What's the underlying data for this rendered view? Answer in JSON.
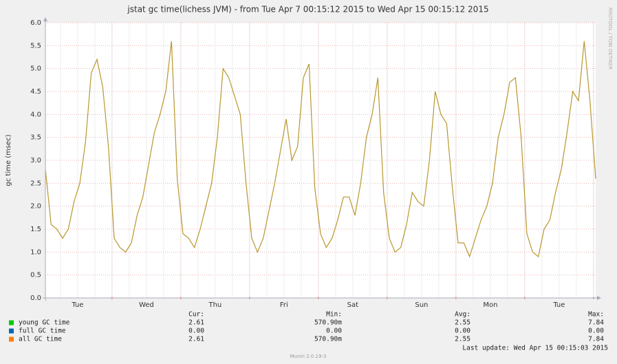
{
  "chart_data": {
    "type": "line",
    "title": "jstat gc time(lichess JVM) - from Tue Apr  7 00:15:12 2015 to Wed Apr 15 00:15:12 2015",
    "y_label": "gc time (msec)",
    "side_label": "RRDTOOL / TOBI OETIKER",
    "categories": [
      "Tue",
      "Wed",
      "Thu",
      "Fri",
      "Sat",
      "Sun",
      "Mon",
      "Tue"
    ],
    "ylim": [
      0,
      6
    ],
    "yticks": [
      {
        "value": 0,
        "label": "0.0"
      },
      0.5,
      {
        "value": 1,
        "label": "1.0"
      },
      1.5,
      {
        "value": 2,
        "label": "2.0"
      },
      2.5,
      {
        "value": 3,
        "label": "3.0"
      },
      3.5,
      {
        "value": 4,
        "label": "4.0"
      },
      4.5,
      {
        "value": 5,
        "label": "5.0"
      },
      5.5,
      {
        "value": 6,
        "label": "6.0"
      }
    ],
    "grid": true,
    "line": {
      "color": "#b8962d",
      "values": [
        2.8,
        1.6,
        1.5,
        1.3,
        1.5,
        2.1,
        2.5,
        3.4,
        4.9,
        5.2,
        4.6,
        3.3,
        1.3,
        1.1,
        1.0,
        1.2,
        1.8,
        2.2,
        2.9,
        3.6,
        4.0,
        4.5,
        5.6,
        2.6,
        1.4,
        1.3,
        1.1,
        1.5,
        2.0,
        2.5,
        3.5,
        5.0,
        4.8,
        4.4,
        4.0,
        2.5,
        1.3,
        1.0,
        1.3,
        1.9,
        2.5,
        3.2,
        3.9,
        3.0,
        3.3,
        4.8,
        5.1,
        2.4,
        1.4,
        1.1,
        1.3,
        1.7,
        2.2,
        2.2,
        1.8,
        2.5,
        3.5,
        4.0,
        4.8,
        2.3,
        1.3,
        1.0,
        1.1,
        1.6,
        2.3,
        2.1,
        2.0,
        3.0,
        4.5,
        4.0,
        3.8,
        2.4,
        1.2,
        1.2,
        0.9,
        1.3,
        1.7,
        2.0,
        2.5,
        3.5,
        4.0,
        4.7,
        4.8,
        3.5,
        1.4,
        1.0,
        0.9,
        1.5,
        1.7,
        2.3,
        2.8,
        3.6,
        4.5,
        4.3,
        5.6,
        4.3,
        2.6
      ]
    },
    "legend_columns": [
      "Cur:",
      "Min:",
      "Avg:",
      "Max:"
    ],
    "series": [
      {
        "name": "young GC time",
        "color": "#00cc00",
        "stats": [
          "2.61",
          "570.90m",
          "2.55",
          "7.84"
        ]
      },
      {
        "name": "full GC time",
        "color": "#0066b3",
        "stats": [
          "0.00",
          "0.00",
          "0.00",
          "0.00"
        ]
      },
      {
        "name": "all GC time",
        "color": "#ff8000",
        "stats": [
          "2.61",
          "570.90m",
          "2.55",
          "7.84"
        ]
      }
    ],
    "last_update": "Last update: Wed Apr 15 00:15:03 2015",
    "footer": "Munin 2.0.19-3"
  }
}
